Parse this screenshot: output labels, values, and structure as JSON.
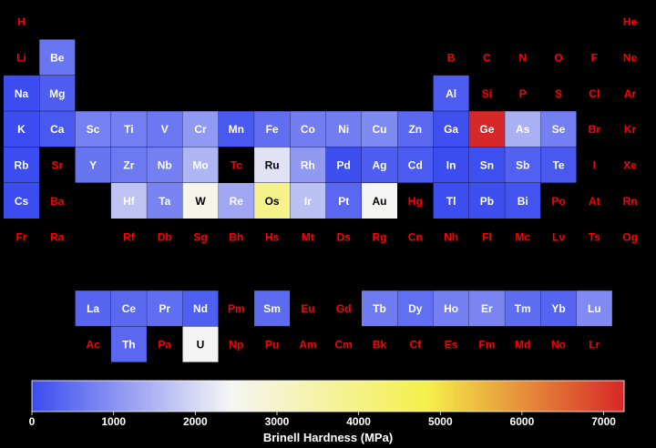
{
  "chart_data": {
    "type": "heatmap",
    "layout": "periodic-table",
    "colorbar": {
      "label": "Brinell Hardness (MPa)",
      "min": 0,
      "max": 7250,
      "ticks": [
        0,
        1000,
        2000,
        3000,
        4000,
        5000,
        6000,
        7000
      ],
      "colormap": [
        "#3b4cf0",
        "#f5f5f5",
        "#f5f04a",
        "#d62828"
      ]
    },
    "missing_label_color": "#ff0000",
    "present_label_color": "#ffffff",
    "elements": [
      {
        "symbol": "H",
        "period": 1,
        "group": 1,
        "value": null
      },
      {
        "symbol": "He",
        "period": 1,
        "group": 18,
        "value": null
      },
      {
        "symbol": "Li",
        "period": 2,
        "group": 1,
        "value": null
      },
      {
        "symbol": "Be",
        "period": 2,
        "group": 2,
        "value": 600
      },
      {
        "symbol": "B",
        "period": 2,
        "group": 13,
        "value": null
      },
      {
        "symbol": "C",
        "period": 2,
        "group": 14,
        "value": null
      },
      {
        "symbol": "N",
        "period": 2,
        "group": 15,
        "value": null
      },
      {
        "symbol": "O",
        "period": 2,
        "group": 16,
        "value": null
      },
      {
        "symbol": "F",
        "period": 2,
        "group": 17,
        "value": null
      },
      {
        "symbol": "Ne",
        "period": 2,
        "group": 18,
        "value": null
      },
      {
        "symbol": "Na",
        "period": 3,
        "group": 1,
        "value": 0.7
      },
      {
        "symbol": "Mg",
        "period": 3,
        "group": 2,
        "value": 260
      },
      {
        "symbol": "Al",
        "period": 3,
        "group": 13,
        "value": 245
      },
      {
        "symbol": "Si",
        "period": 3,
        "group": 14,
        "value": null
      },
      {
        "symbol": "P",
        "period": 3,
        "group": 15,
        "value": null
      },
      {
        "symbol": "S",
        "period": 3,
        "group": 16,
        "value": null
      },
      {
        "symbol": "Cl",
        "period": 3,
        "group": 17,
        "value": null
      },
      {
        "symbol": "Ar",
        "period": 3,
        "group": 18,
        "value": null
      },
      {
        "symbol": "K",
        "period": 4,
        "group": 1,
        "value": 0.4
      },
      {
        "symbol": "Ca",
        "period": 4,
        "group": 2,
        "value": 170
      },
      {
        "symbol": "Sc",
        "period": 4,
        "group": 3,
        "value": 750
      },
      {
        "symbol": "Ti",
        "period": 4,
        "group": 4,
        "value": 715
      },
      {
        "symbol": "V",
        "period": 4,
        "group": 5,
        "value": 628
      },
      {
        "symbol": "Cr",
        "period": 4,
        "group": 6,
        "value": 1120
      },
      {
        "symbol": "Mn",
        "period": 4,
        "group": 7,
        "value": 196
      },
      {
        "symbol": "Fe",
        "period": 4,
        "group": 8,
        "value": 490
      },
      {
        "symbol": "Co",
        "period": 4,
        "group": 9,
        "value": 700
      },
      {
        "symbol": "Ni",
        "period": 4,
        "group": 10,
        "value": 700
      },
      {
        "symbol": "Cu",
        "period": 4,
        "group": 11,
        "value": 874
      },
      {
        "symbol": "Zn",
        "period": 4,
        "group": 12,
        "value": 412
      },
      {
        "symbol": "Ga",
        "period": 4,
        "group": 13,
        "value": 60
      },
      {
        "symbol": "Ge",
        "period": 4,
        "group": 14,
        "value": 7250
      },
      {
        "symbol": "As",
        "period": 4,
        "group": 15,
        "value": 1440
      },
      {
        "symbol": "Se",
        "period": 4,
        "group": 16,
        "value": 736
      },
      {
        "symbol": "Br",
        "period": 4,
        "group": 17,
        "value": null
      },
      {
        "symbol": "Kr",
        "period": 4,
        "group": 18,
        "value": null
      },
      {
        "symbol": "Rb",
        "period": 5,
        "group": 1,
        "value": 0.216
      },
      {
        "symbol": "Sr",
        "period": 5,
        "group": 2,
        "value": null
      },
      {
        "symbol": "Y",
        "period": 5,
        "group": 3,
        "value": 589
      },
      {
        "symbol": "Zr",
        "period": 5,
        "group": 4,
        "value": 650
      },
      {
        "symbol": "Nb",
        "period": 5,
        "group": 5,
        "value": 736
      },
      {
        "symbol": "Mo",
        "period": 5,
        "group": 6,
        "value": 1500
      },
      {
        "symbol": "Tc",
        "period": 5,
        "group": 7,
        "value": null
      },
      {
        "symbol": "Ru",
        "period": 5,
        "group": 8,
        "value": 2160
      },
      {
        "symbol": "Rh",
        "period": 5,
        "group": 9,
        "value": 1100
      },
      {
        "symbol": "Pd",
        "period": 5,
        "group": 10,
        "value": 37
      },
      {
        "symbol": "Ag",
        "period": 5,
        "group": 11,
        "value": 251
      },
      {
        "symbol": "Cd",
        "period": 5,
        "group": 12,
        "value": 203
      },
      {
        "symbol": "In",
        "period": 5,
        "group": 13,
        "value": 8.83
      },
      {
        "symbol": "Sn",
        "period": 5,
        "group": 14,
        "value": 51
      },
      {
        "symbol": "Sb",
        "period": 5,
        "group": 15,
        "value": 294
      },
      {
        "symbol": "Te",
        "period": 5,
        "group": 16,
        "value": 180
      },
      {
        "symbol": "I",
        "period": 5,
        "group": 17,
        "value": null
      },
      {
        "symbol": "Xe",
        "period": 5,
        "group": 18,
        "value": null
      },
      {
        "symbol": "Cs",
        "period": 6,
        "group": 1,
        "value": 0.14
      },
      {
        "symbol": "Ba",
        "period": 6,
        "group": 2,
        "value": null
      },
      {
        "symbol": "Hf",
        "period": 6,
        "group": 4,
        "value": 1700
      },
      {
        "symbol": "Ta",
        "period": 6,
        "group": 5,
        "value": 800
      },
      {
        "symbol": "W",
        "period": 6,
        "group": 6,
        "value": 2570
      },
      {
        "symbol": "Re",
        "period": 6,
        "group": 7,
        "value": 1320
      },
      {
        "symbol": "Os",
        "period": 6,
        "group": 8,
        "value": 3920
      },
      {
        "symbol": "Ir",
        "period": 6,
        "group": 9,
        "value": 1670
      },
      {
        "symbol": "Pt",
        "period": 6,
        "group": 10,
        "value": 392
      },
      {
        "symbol": "Au",
        "period": 6,
        "group": 11,
        "value": 2450
      },
      {
        "symbol": "Hg",
        "period": 6,
        "group": 12,
        "value": null
      },
      {
        "symbol": "Tl",
        "period": 6,
        "group": 13,
        "value": 26.4
      },
      {
        "symbol": "Pb",
        "period": 6,
        "group": 14,
        "value": 38.3
      },
      {
        "symbol": "Bi",
        "period": 6,
        "group": 15,
        "value": 94.2
      },
      {
        "symbol": "Po",
        "period": 6,
        "group": 16,
        "value": null
      },
      {
        "symbol": "At",
        "period": 6,
        "group": 17,
        "value": null
      },
      {
        "symbol": "Rn",
        "period": 6,
        "group": 18,
        "value": null
      },
      {
        "symbol": "Fr",
        "period": 7,
        "group": 1,
        "value": null
      },
      {
        "symbol": "Ra",
        "period": 7,
        "group": 2,
        "value": null
      },
      {
        "symbol": "Rf",
        "period": 7,
        "group": 4,
        "value": null
      },
      {
        "symbol": "Db",
        "period": 7,
        "group": 5,
        "value": null
      },
      {
        "symbol": "Sg",
        "period": 7,
        "group": 6,
        "value": null
      },
      {
        "symbol": "Bh",
        "period": 7,
        "group": 7,
        "value": null
      },
      {
        "symbol": "Hs",
        "period": 7,
        "group": 8,
        "value": null
      },
      {
        "symbol": "Mt",
        "period": 7,
        "group": 9,
        "value": null
      },
      {
        "symbol": "Ds",
        "period": 7,
        "group": 10,
        "value": null
      },
      {
        "symbol": "Rg",
        "period": 7,
        "group": 11,
        "value": null
      },
      {
        "symbol": "Cn",
        "period": 7,
        "group": 12,
        "value": null
      },
      {
        "symbol": "Nh",
        "period": 7,
        "group": 13,
        "value": null
      },
      {
        "symbol": "Fl",
        "period": 7,
        "group": 14,
        "value": null
      },
      {
        "symbol": "Mc",
        "period": 7,
        "group": 15,
        "value": null
      },
      {
        "symbol": "Lv",
        "period": 7,
        "group": 16,
        "value": null
      },
      {
        "symbol": "Ts",
        "period": 7,
        "group": 17,
        "value": null
      },
      {
        "symbol": "Og",
        "period": 7,
        "group": 18,
        "value": null
      },
      {
        "symbol": "La",
        "period": 9,
        "group": 3,
        "value": 363
      },
      {
        "symbol": "Ce",
        "period": 9,
        "group": 4,
        "value": 412
      },
      {
        "symbol": "Pr",
        "period": 9,
        "group": 5,
        "value": 481
      },
      {
        "symbol": "Nd",
        "period": 9,
        "group": 6,
        "value": 265
      },
      {
        "symbol": "Pm",
        "period": 9,
        "group": 7,
        "value": null
      },
      {
        "symbol": "Sm",
        "period": 9,
        "group": 8,
        "value": 441
      },
      {
        "symbol": "Eu",
        "period": 9,
        "group": 9,
        "value": null
      },
      {
        "symbol": "Gd",
        "period": 9,
        "group": 10,
        "value": null
      },
      {
        "symbol": "Tb",
        "period": 9,
        "group": 11,
        "value": 677
      },
      {
        "symbol": "Dy",
        "period": 9,
        "group": 12,
        "value": 500
      },
      {
        "symbol": "Ho",
        "period": 9,
        "group": 13,
        "value": 746
      },
      {
        "symbol": "Er",
        "period": 9,
        "group": 14,
        "value": 814
      },
      {
        "symbol": "Tm",
        "period": 9,
        "group": 15,
        "value": 471
      },
      {
        "symbol": "Yb",
        "period": 9,
        "group": 16,
        "value": 343
      },
      {
        "symbol": "Lu",
        "period": 9,
        "group": 17,
        "value": 893
      },
      {
        "symbol": "Ac",
        "period": 10,
        "group": 3,
        "value": null
      },
      {
        "symbol": "Th",
        "period": 10,
        "group": 4,
        "value": 400
      },
      {
        "symbol": "Pa",
        "period": 10,
        "group": 5,
        "value": null
      },
      {
        "symbol": "U",
        "period": 10,
        "group": 6,
        "value": 2400
      },
      {
        "symbol": "Np",
        "period": 10,
        "group": 7,
        "value": null
      },
      {
        "symbol": "Pu",
        "period": 10,
        "group": 8,
        "value": null
      },
      {
        "symbol": "Am",
        "period": 10,
        "group": 9,
        "value": null
      },
      {
        "symbol": "Cm",
        "period": 10,
        "group": 10,
        "value": null
      },
      {
        "symbol": "Bk",
        "period": 10,
        "group": 11,
        "value": null
      },
      {
        "symbol": "Cf",
        "period": 10,
        "group": 12,
        "value": null
      },
      {
        "symbol": "Es",
        "period": 10,
        "group": 13,
        "value": null
      },
      {
        "symbol": "Fm",
        "period": 10,
        "group": 14,
        "value": null
      },
      {
        "symbol": "Md",
        "period": 10,
        "group": 15,
        "value": null
      },
      {
        "symbol": "No",
        "period": 10,
        "group": 16,
        "value": null
      },
      {
        "symbol": "Lr",
        "period": 10,
        "group": 17,
        "value": null
      }
    ]
  }
}
